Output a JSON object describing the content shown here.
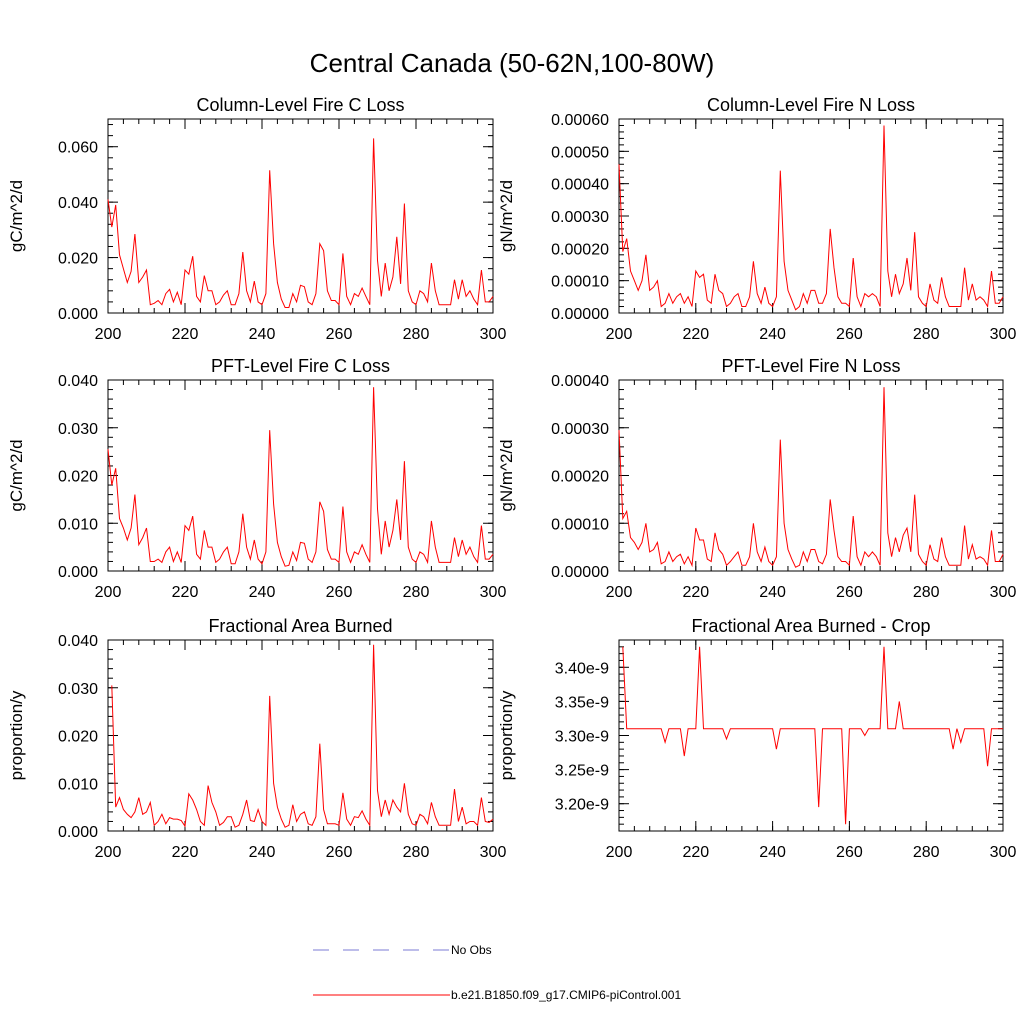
{
  "title": "Central Canada (50-62N,100-80W)",
  "colors": {
    "series": "#ff0000",
    "obs": "#7b7bd6",
    "axis": "#000000"
  },
  "legend": {
    "obs_label": "No Obs",
    "model_label": "b.e21.B1850.f09_g17.CMIP6-piControl.001"
  },
  "chart_data": [
    {
      "type": "line",
      "title": "Column-Level Fire C Loss",
      "ylabel": "gC/m^2/d",
      "xlim": [
        200,
        300
      ],
      "ylim": [
        0,
        0.07
      ],
      "xticks": [
        "200",
        "220",
        "240",
        "260",
        "280",
        "300"
      ],
      "xtick_values": [
        200,
        220,
        240,
        260,
        280,
        300
      ],
      "yticks": [
        "0.000",
        "0.020",
        "0.040",
        "0.060"
      ],
      "ytick_values": [
        0,
        0.02,
        0.04,
        0.06
      ],
      "series": [
        {
          "values": [
            0.041,
            0.031,
            0.039,
            0.021,
            0.016,
            0.011,
            0.015,
            0.0285,
            0.011,
            0.013,
            0.0155,
            0.003,
            0.0035,
            0.0045,
            0.003,
            0.007,
            0.0085,
            0.004,
            0.0075,
            0.003,
            0.0155,
            0.014,
            0.0205,
            0.006,
            0.004,
            0.0135,
            0.008,
            0.008,
            0.003,
            0.004,
            0.0065,
            0.008,
            0.003,
            0.003,
            0.007,
            0.022,
            0.008,
            0.004,
            0.0115,
            0.004,
            0.003,
            0.007,
            0.0515,
            0.025,
            0.011,
            0.005,
            0.002,
            0.002,
            0.007,
            0.004,
            0.01,
            0.0095,
            0.004,
            0.003,
            0.007,
            0.025,
            0.0225,
            0.008,
            0.0045,
            0.0045,
            0.003,
            0.0215,
            0.006,
            0.003,
            0.007,
            0.006,
            0.009,
            0.006,
            0.003,
            0.063,
            0.019,
            0.006,
            0.018,
            0.008,
            0.013,
            0.0275,
            0.0105,
            0.0395,
            0.008,
            0.004,
            0.003,
            0.008,
            0.007,
            0.004,
            0.018,
            0.008,
            0.003,
            0.003,
            0.003,
            0.003,
            0.012,
            0.005,
            0.012,
            0.006,
            0.008,
            0.005,
            0.003,
            0.0155,
            0.004,
            0.004,
            0.006
          ]
        }
      ]
    },
    {
      "type": "line",
      "title": "Column-Level Fire N Loss",
      "ylabel": "gN/m^2/d",
      "xlim": [
        200,
        300
      ],
      "ylim": [
        0,
        0.0006
      ],
      "xticks": [
        "200",
        "220",
        "240",
        "260",
        "280",
        "300"
      ],
      "xtick_values": [
        200,
        220,
        240,
        260,
        280,
        300
      ],
      "yticks": [
        "0.00000",
        "0.00010",
        "0.00020",
        "0.00030",
        "0.00040",
        "0.00050",
        "0.00060"
      ],
      "ytick_values": [
        0,
        0.0001,
        0.0002,
        0.0003,
        0.0004,
        0.0005,
        0.0006
      ],
      "series": [
        {
          "values": [
            0.00046,
            0.00019,
            0.00023,
            0.00013,
            0.0001,
            7e-05,
            0.0001,
            0.00018,
            7e-05,
            8e-05,
            0.0001,
            2e-05,
            3e-05,
            6e-05,
            3e-05,
            5e-05,
            6e-05,
            3e-05,
            5e-05,
            2e-05,
            0.00013,
            0.00011,
            0.00012,
            4e-05,
            3e-05,
            0.00012,
            7e-05,
            6e-05,
            2e-05,
            3e-05,
            5e-05,
            6e-05,
            2e-05,
            2e-05,
            5e-05,
            0.00016,
            6e-05,
            3e-05,
            8e-05,
            3e-05,
            2e-05,
            5e-05,
            0.00044,
            0.00016,
            7e-05,
            4e-05,
            1e-05,
            2e-05,
            6e-05,
            3e-05,
            7e-05,
            7e-05,
            3e-05,
            3e-05,
            6e-05,
            0.00026,
            0.00014,
            5e-05,
            3e-05,
            3e-05,
            2e-05,
            0.00017,
            5e-05,
            2e-05,
            6e-05,
            5e-05,
            6e-05,
            5e-05,
            2e-05,
            0.00058,
            0.00013,
            5e-05,
            0.00012,
            6e-05,
            9e-05,
            0.00017,
            7e-05,
            0.00025,
            5e-05,
            3e-05,
            2e-05,
            9e-05,
            4e-05,
            3e-05,
            0.00011,
            5e-05,
            2e-05,
            2e-05,
            2e-05,
            2e-05,
            0.00014,
            4e-05,
            9e-05,
            4e-05,
            5e-05,
            4e-05,
            2e-05,
            0.00013,
            3e-05,
            3e-05,
            5e-05
          ]
        }
      ]
    },
    {
      "type": "line",
      "title": "PFT-Level Fire C Loss",
      "ylabel": "gC/m^2/d",
      "xlim": [
        200,
        300
      ],
      "ylim": [
        0,
        0.04
      ],
      "xticks": [
        "200",
        "220",
        "240",
        "260",
        "280",
        "300"
      ],
      "xtick_values": [
        200,
        220,
        240,
        260,
        280,
        300
      ],
      "yticks": [
        "0.000",
        "0.010",
        "0.020",
        "0.030",
        "0.040"
      ],
      "ytick_values": [
        0,
        0.01,
        0.02,
        0.03,
        0.04
      ],
      "series": [
        {
          "values": [
            0.0255,
            0.018,
            0.0215,
            0.011,
            0.009,
            0.0065,
            0.009,
            0.016,
            0.0055,
            0.007,
            0.009,
            0.002,
            0.002,
            0.0025,
            0.0018,
            0.004,
            0.005,
            0.002,
            0.004,
            0.0018,
            0.0095,
            0.0085,
            0.0115,
            0.0035,
            0.0025,
            0.0085,
            0.005,
            0.005,
            0.0018,
            0.0025,
            0.004,
            0.005,
            0.0015,
            0.0015,
            0.004,
            0.012,
            0.005,
            0.0025,
            0.0065,
            0.0025,
            0.0015,
            0.004,
            0.0295,
            0.014,
            0.006,
            0.003,
            0.001,
            0.0012,
            0.004,
            0.0022,
            0.006,
            0.0058,
            0.0025,
            0.0018,
            0.004,
            0.0145,
            0.0125,
            0.0045,
            0.0025,
            0.0025,
            0.0018,
            0.0135,
            0.004,
            0.0018,
            0.004,
            0.0035,
            0.0055,
            0.0035,
            0.0018,
            0.0385,
            0.013,
            0.0035,
            0.0105,
            0.005,
            0.0085,
            0.015,
            0.0065,
            0.023,
            0.005,
            0.0025,
            0.0018,
            0.004,
            0.0035,
            0.0018,
            0.0105,
            0.005,
            0.0018,
            0.0018,
            0.0018,
            0.0018,
            0.007,
            0.003,
            0.0065,
            0.0035,
            0.005,
            0.003,
            0.0018,
            0.0095,
            0.0025,
            0.0025,
            0.0035
          ]
        }
      ]
    },
    {
      "type": "line",
      "title": "PFT-Level Fire N Loss",
      "ylabel": "gN/m^2/d",
      "xlim": [
        200,
        300
      ],
      "ylim": [
        0,
        0.0004
      ],
      "xticks": [
        "200",
        "220",
        "240",
        "260",
        "280",
        "300"
      ],
      "xtick_values": [
        200,
        220,
        240,
        260,
        280,
        300
      ],
      "yticks": [
        "0.00000",
        "0.00010",
        "0.00020",
        "0.00030",
        "0.00040"
      ],
      "ytick_values": [
        0,
        0.0001,
        0.0002,
        0.0003,
        0.0004
      ],
      "series": [
        {
          "values": [
            0.000295,
            0.00011,
            0.000125,
            7e-05,
            6e-05,
            4.5e-05,
            6e-05,
            0.0001,
            4e-05,
            4.5e-05,
            6e-05,
            1.5e-05,
            2e-05,
            4e-05,
            2e-05,
            3e-05,
            3.5e-05,
            1.5e-05,
            3e-05,
            1.2e-05,
            9e-05,
            6.5e-05,
            6.5e-05,
            2.5e-05,
            2e-05,
            8e-05,
            4.5e-05,
            3.5e-05,
            1.2e-05,
            2e-05,
            3e-05,
            4e-05,
            1.2e-05,
            1.2e-05,
            3e-05,
            0.0001,
            4e-05,
            2e-05,
            5e-05,
            2e-05,
            1.2e-05,
            3e-05,
            0.000275,
            0.0001,
            4.5e-05,
            2.5e-05,
            8e-06,
            1.2e-05,
            4e-05,
            2e-05,
            4.5e-05,
            4.5e-05,
            2e-05,
            1.5e-05,
            3.5e-05,
            0.00015,
            8.5e-05,
            3e-05,
            2e-05,
            2e-05,
            1.2e-05,
            0.000115,
            3e-05,
            1.2e-05,
            4e-05,
            3e-05,
            4e-05,
            3e-05,
            1.2e-05,
            0.000385,
            8e-05,
            3e-05,
            7e-05,
            4e-05,
            7.5e-05,
            9e-05,
            4e-05,
            0.00016,
            3.5e-05,
            2e-05,
            1.2e-05,
            5.5e-05,
            2.5e-05,
            2e-05,
            7e-05,
            3e-05,
            1.2e-05,
            1.2e-05,
            1.2e-05,
            1.2e-05,
            9.5e-05,
            2.5e-05,
            5.5e-05,
            2.5e-05,
            3e-05,
            2.5e-05,
            1.2e-05,
            8.5e-05,
            2e-05,
            2e-05,
            3.5e-05
          ]
        }
      ]
    },
    {
      "type": "line",
      "title": "Fractional Area Burned",
      "ylabel": "proportion/y",
      "xlim": [
        200,
        300
      ],
      "ylim": [
        0,
        0.04
      ],
      "xticks": [
        "200",
        "220",
        "240",
        "260",
        "280",
        "300"
      ],
      "xtick_values": [
        200,
        220,
        240,
        260,
        280,
        300
      ],
      "yticks": [
        "0.000",
        "0.010",
        "0.020",
        "0.030",
        "0.040"
      ],
      "ytick_values": [
        0,
        0.01,
        0.02,
        0.03,
        0.04
      ],
      "series": [
        {
          "values": [
            null,
            0.0305,
            0.005,
            0.007,
            0.0045,
            0.0035,
            0.0028,
            0.004,
            0.007,
            0.0035,
            0.004,
            0.006,
            0.0012,
            0.002,
            0.0035,
            0.0015,
            0.0028,
            0.0025,
            0.0025,
            0.0022,
            0.001,
            0.0078,
            0.0065,
            0.0045,
            0.002,
            0.0012,
            0.0095,
            0.006,
            0.004,
            0.0012,
            0.0018,
            0.003,
            0.003,
            0.0008,
            0.0012,
            0.0035,
            0.0065,
            0.0022,
            0.002,
            0.0045,
            0.002,
            0.0012,
            0.0283,
            0.01,
            0.005,
            0.0025,
            0.0008,
            0.0012,
            0.0055,
            0.002,
            0.0035,
            0.004,
            0.0015,
            0.0012,
            0.003,
            0.0183,
            0.0045,
            0.0015,
            0.0015,
            0.0015,
            0.0012,
            0.008,
            0.0025,
            0.0012,
            0.003,
            0.0028,
            0.0042,
            0.0025,
            0.0012,
            0.039,
            0.0085,
            0.003,
            0.0065,
            0.0035,
            0.0065,
            0.005,
            0.004,
            0.01,
            0.0035,
            0.0015,
            0.0012,
            0.0035,
            0.003,
            0.0015,
            0.006,
            0.003,
            0.0012,
            0.0012,
            0.0012,
            0.0012,
            0.0088,
            0.002,
            0.005,
            0.0015,
            0.002,
            0.002,
            0.0012,
            0.007,
            0.002,
            0.0018,
            0.0025
          ]
        }
      ]
    },
    {
      "type": "line",
      "title": "Fractional Area Burned - Crop",
      "ylabel": "proportion/y",
      "xlim": [
        200,
        300
      ],
      "ylim": [
        3.16e-09,
        3.44e-09
      ],
      "xticks": [
        "200",
        "220",
        "240",
        "260",
        "280",
        "300"
      ],
      "xtick_values": [
        200,
        220,
        240,
        260,
        280,
        300
      ],
      "yticks": [
        "3.20e-9",
        "3.25e-9",
        "3.30e-9",
        "3.35e-9",
        "3.40e-9"
      ],
      "ytick_values": [
        3.2e-09,
        3.25e-09,
        3.3e-09,
        3.35e-09,
        3.4e-09
      ],
      "series": [
        {
          "values": [
            null,
            3.43e-09,
            3.31e-09,
            3.31e-09,
            3.31e-09,
            3.31e-09,
            3.31e-09,
            3.31e-09,
            3.31e-09,
            3.31e-09,
            3.31e-09,
            3.31e-09,
            3.29e-09,
            3.31e-09,
            3.31e-09,
            3.31e-09,
            3.31e-09,
            3.27e-09,
            3.31e-09,
            3.31e-09,
            3.31e-09,
            3.43e-09,
            3.31e-09,
            3.31e-09,
            3.31e-09,
            3.31e-09,
            3.31e-09,
            3.31e-09,
            3.295e-09,
            3.31e-09,
            3.31e-09,
            3.31e-09,
            3.31e-09,
            3.31e-09,
            3.31e-09,
            3.31e-09,
            3.31e-09,
            3.31e-09,
            3.31e-09,
            3.31e-09,
            3.31e-09,
            3.28e-09,
            3.31e-09,
            3.31e-09,
            3.31e-09,
            3.31e-09,
            3.31e-09,
            3.31e-09,
            3.31e-09,
            3.31e-09,
            3.31e-09,
            3.31e-09,
            3.195e-09,
            3.31e-09,
            3.31e-09,
            3.31e-09,
            3.31e-09,
            3.31e-09,
            3.31e-09,
            3.17e-09,
            3.31e-09,
            3.31e-09,
            3.31e-09,
            3.31e-09,
            3.3e-09,
            3.31e-09,
            3.31e-09,
            3.31e-09,
            3.31e-09,
            3.43e-09,
            3.31e-09,
            3.31e-09,
            3.31e-09,
            3.35e-09,
            3.31e-09,
            3.31e-09,
            3.31e-09,
            3.31e-09,
            3.31e-09,
            3.31e-09,
            3.31e-09,
            3.31e-09,
            3.31e-09,
            3.31e-09,
            3.31e-09,
            3.31e-09,
            3.31e-09,
            3.28e-09,
            3.31e-09,
            3.29e-09,
            3.31e-09,
            3.31e-09,
            3.31e-09,
            3.31e-09,
            3.31e-09,
            3.31e-09,
            3.255e-09,
            3.31e-09,
            3.31e-09,
            3.31e-09,
            3.31e-09
          ]
        }
      ]
    }
  ]
}
